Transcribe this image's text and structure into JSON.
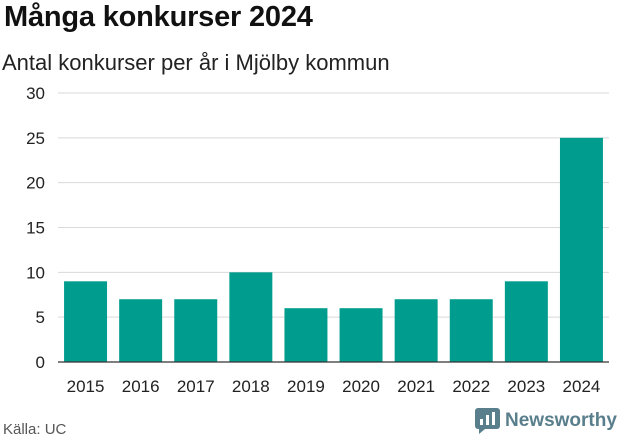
{
  "header": {
    "title": "Många konkurser 2024",
    "subtitle": "Antal konkurser per år i Mjölby kommun"
  },
  "footer": {
    "source": "Källa: UC",
    "brand": "Newsworthy"
  },
  "colors": {
    "bar": "#009d8e",
    "grid": "#d9d9d9",
    "brand": "#5a7f8c"
  },
  "chart_data": {
    "type": "bar",
    "title": "Många konkurser 2024",
    "subtitle": "Antal konkurser per år i Mjölby kommun",
    "categories": [
      "2015",
      "2016",
      "2017",
      "2018",
      "2019",
      "2020",
      "2021",
      "2022",
      "2023",
      "2024"
    ],
    "values": [
      9,
      7,
      7,
      10,
      6,
      6,
      7,
      7,
      9,
      25
    ],
    "yticks": [
      0,
      5,
      10,
      15,
      20,
      25,
      30
    ],
    "ylim": [
      0,
      30
    ],
    "xlabel": "",
    "ylabel": "",
    "grid": true,
    "legend": "none"
  }
}
